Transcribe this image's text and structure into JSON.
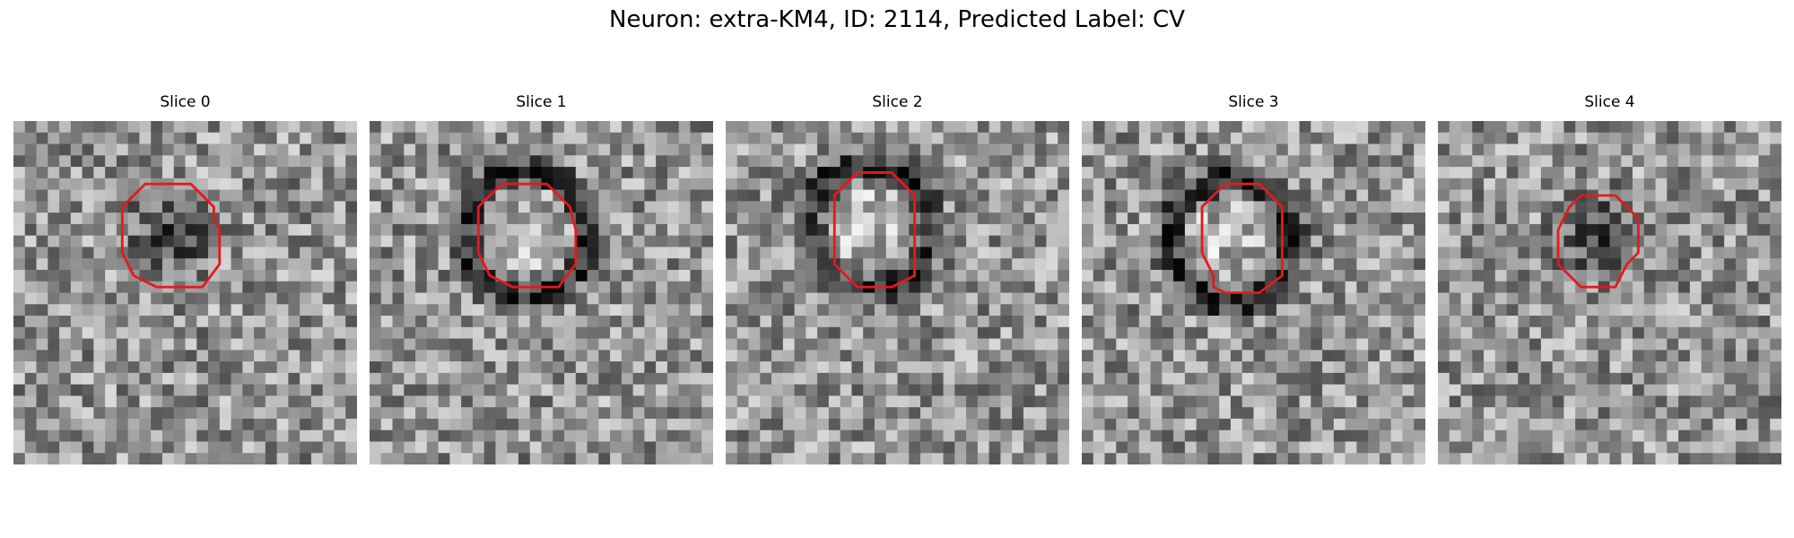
{
  "figure": {
    "title": "Neuron: extra-KM4, ID: 2114, Predicted Label: CV"
  },
  "colors": {
    "contour": "#e41a1c",
    "background": "#ffffff"
  },
  "panels": [
    {
      "title": "Slice 0",
      "center": "dark",
      "contour": [
        [
          12.5,
          5.5
        ],
        [
          15.5,
          5.5
        ],
        [
          17.5,
          7.5
        ],
        [
          17.5,
          8.5
        ],
        [
          18,
          9.5
        ],
        [
          18,
          12.5
        ],
        [
          16.5,
          14.5
        ],
        [
          12.5,
          14.5
        ],
        [
          10.5,
          13.5
        ],
        [
          9.5,
          11.5
        ],
        [
          9.5,
          9.5
        ],
        [
          9.5,
          7.5
        ],
        [
          11.5,
          5.5
        ]
      ]
    },
    {
      "title": "Slice 1",
      "center": "bright-ring",
      "contour": [
        [
          11.5,
          5.5
        ],
        [
          15.5,
          5.5
        ],
        [
          17.5,
          7.5
        ],
        [
          18,
          9.5
        ],
        [
          18,
          12.5
        ],
        [
          16.5,
          14.5
        ],
        [
          12.5,
          14.5
        ],
        [
          10.5,
          13.5
        ],
        [
          9.5,
          11.5
        ],
        [
          9.5,
          7.5
        ],
        [
          10.5,
          6.5
        ]
      ]
    },
    {
      "title": "Slice 2",
      "center": "bright-ring",
      "contour": [
        [
          11.5,
          4.5
        ],
        [
          14.5,
          4.5
        ],
        [
          15.5,
          5.5
        ],
        [
          16.5,
          6.5
        ],
        [
          16.5,
          13.5
        ],
        [
          14.5,
          14.5
        ],
        [
          11.5,
          14.5
        ],
        [
          10.5,
          13.5
        ],
        [
          9.5,
          12.5
        ],
        [
          9.5,
          8.5
        ],
        [
          9.5,
          6.5
        ],
        [
          10.5,
          5.5
        ]
      ]
    },
    {
      "title": "Slice 3",
      "center": "bright-ring",
      "contour": [
        [
          12.5,
          5.5
        ],
        [
          15.5,
          5.5
        ],
        [
          17.5,
          7.5
        ],
        [
          17.5,
          13.5
        ],
        [
          15.5,
          15
        ],
        [
          12.5,
          15
        ],
        [
          11.5,
          14.5
        ],
        [
          11.5,
          13.5
        ],
        [
          10.5,
          11.5
        ],
        [
          10.5,
          8.5
        ],
        [
          10.5,
          7.5
        ],
        [
          11.5,
          6.5
        ]
      ]
    },
    {
      "title": "Slice 4",
      "center": "dark",
      "contour": [
        [
          13.5,
          6.5
        ],
        [
          15.5,
          6.5
        ],
        [
          16.5,
          7.5
        ],
        [
          17.5,
          8.5
        ],
        [
          17.5,
          11.5
        ],
        [
          16.5,
          12.5
        ],
        [
          15.5,
          14.5
        ],
        [
          12.5,
          14.5
        ],
        [
          10.5,
          12.5
        ],
        [
          10.5,
          9.5
        ],
        [
          11.5,
          7.5
        ],
        [
          12.5,
          6.5
        ]
      ]
    }
  ]
}
